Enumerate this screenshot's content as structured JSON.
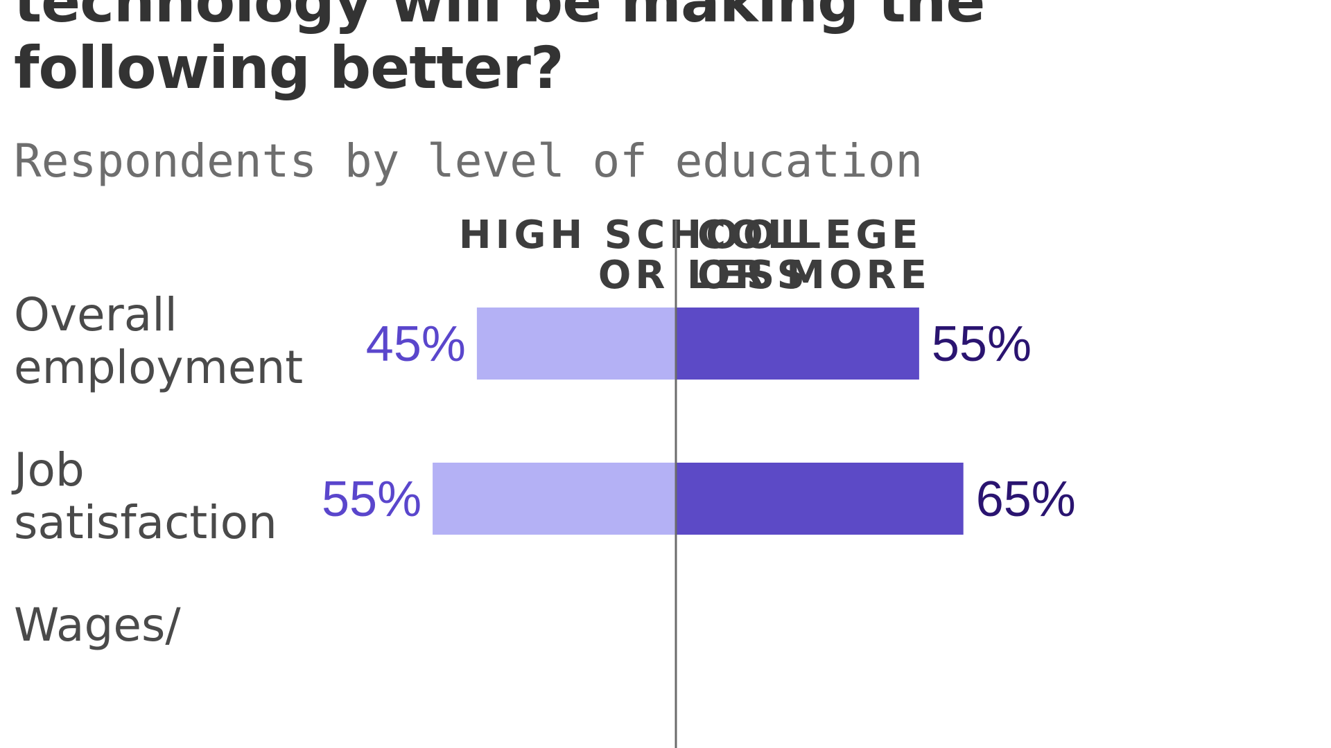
{
  "title": {
    "line1": "technology will be making the",
    "line2": "following better?"
  },
  "subtitle": "Respondents by level of education",
  "colors": {
    "left_bar": "#b4b1f5",
    "right_bar": "#5c4ac6",
    "left_label": "#5a46cc",
    "right_label": "#2a1470",
    "axis": "#6b6b6b"
  },
  "chart_data": {
    "type": "bar",
    "categories": [
      "Overall employment",
      "Job satisfaction",
      "Wages/"
    ],
    "series": [
      {
        "name": "HIGH SCHOOL OR LESS",
        "values": [
          45,
          55,
          null
        ]
      },
      {
        "name": "COLLEGE OR MORE",
        "values": [
          55,
          65,
          null
        ]
      }
    ],
    "value_labels": {
      "left": [
        "45%",
        "55%"
      ],
      "right": [
        "55%",
        "65%"
      ]
    },
    "headers": {
      "left": [
        "HIGH SCHOOL",
        "OR LESS"
      ],
      "right": [
        "COLLEGE",
        "OR MORE"
      ]
    },
    "row_labels": [
      [
        "Overall",
        "employment"
      ],
      [
        "Job",
        "satisfaction"
      ],
      [
        "Wages/"
      ]
    ],
    "unit": "%"
  }
}
